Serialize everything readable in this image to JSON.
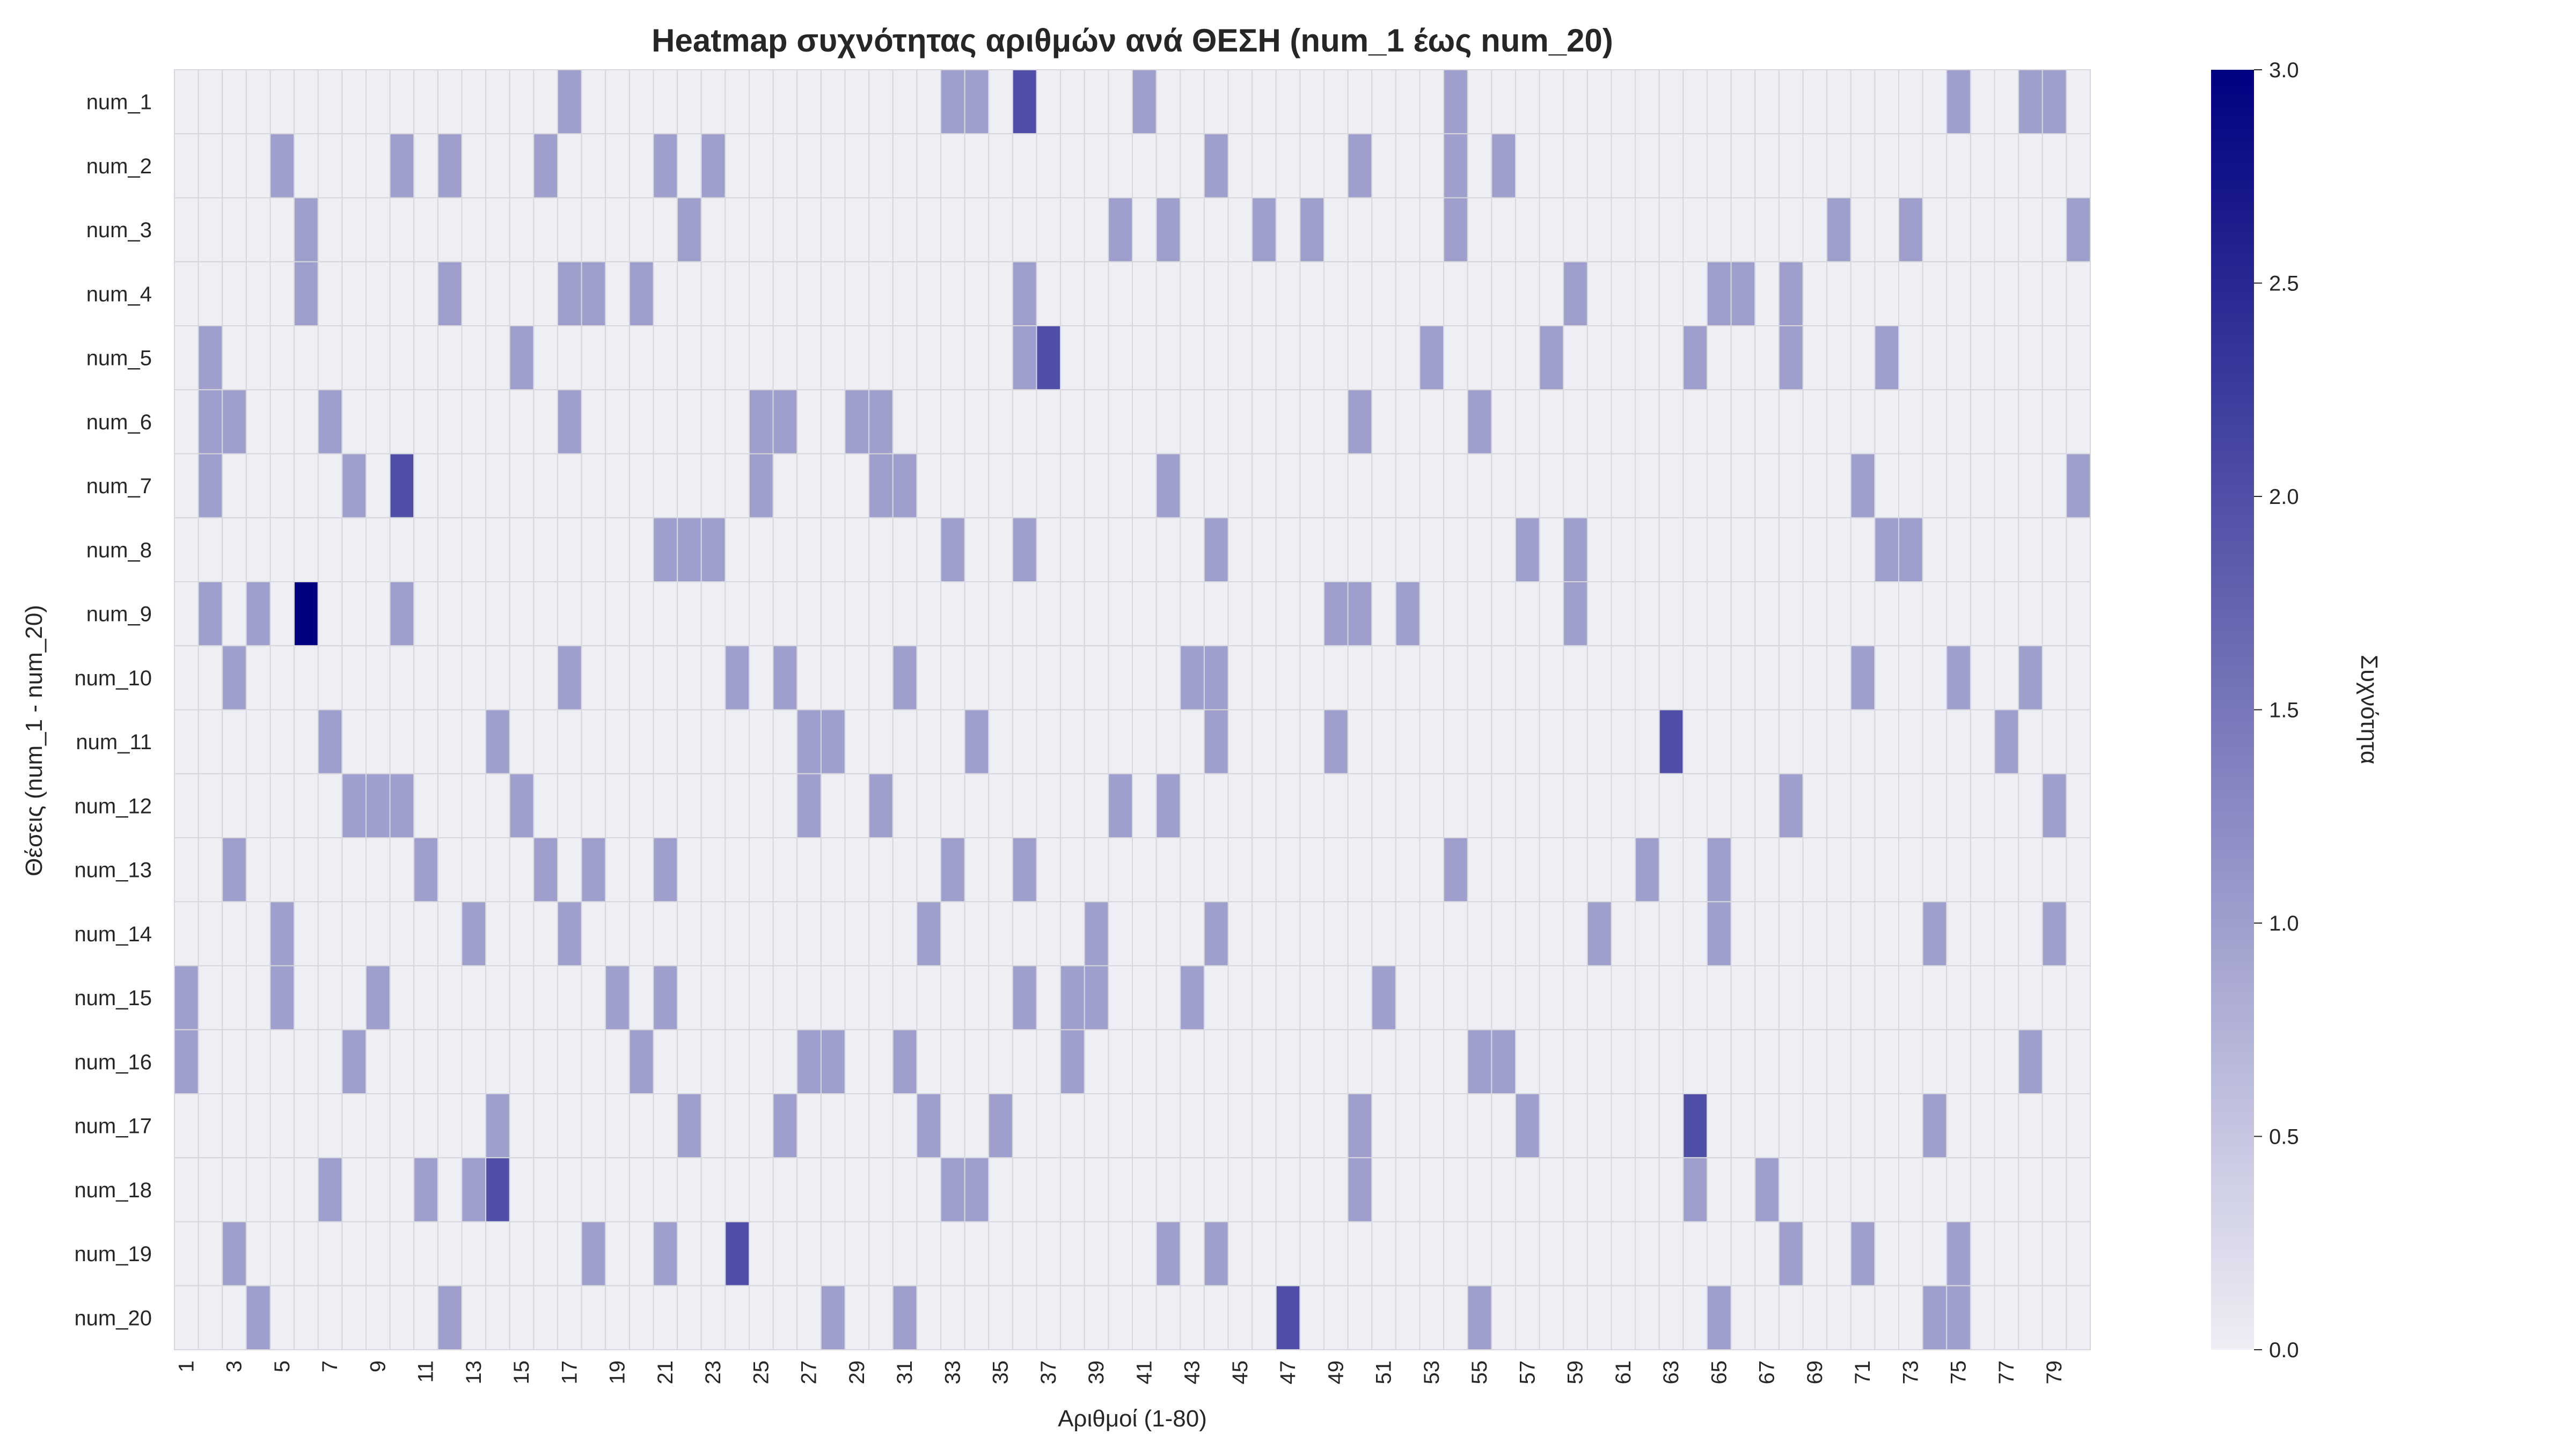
{
  "chart_data": {
    "type": "heatmap",
    "title": "Heatmap συχνότητας αριθμών ανά ΘΕΣΗ (num_1 έως num_20)",
    "xlabel": "Αριθμοί (1-80)",
    "ylabel": "Θέσεις (num_1 - num_20)",
    "colorbar_label": "Συχνότητα",
    "colorbar_range": [
      0,
      3
    ],
    "colorbar_ticks": [
      "0.0",
      "0.5",
      "1.0",
      "1.5",
      "2.0",
      "2.5",
      "3.0"
    ],
    "colorscale": [
      "#eeeef5",
      "#000080"
    ],
    "x_values": [
      1,
      2,
      3,
      4,
      5,
      6,
      7,
      8,
      9,
      10,
      11,
      12,
      13,
      14,
      15,
      16,
      17,
      18,
      19,
      20,
      21,
      22,
      23,
      24,
      25,
      26,
      27,
      28,
      29,
      30,
      31,
      32,
      33,
      34,
      35,
      36,
      37,
      38,
      39,
      40,
      41,
      42,
      43,
      44,
      45,
      46,
      47,
      48,
      49,
      50,
      51,
      52,
      53,
      54,
      55,
      56,
      57,
      58,
      59,
      60,
      61,
      62,
      63,
      64,
      65,
      66,
      67,
      68,
      69,
      70,
      71,
      72,
      73,
      74,
      75,
      76,
      77,
      78,
      79,
      80
    ],
    "x_tick_labels": [
      "1",
      "3",
      "5",
      "7",
      "9",
      "11",
      "13",
      "15",
      "17",
      "19",
      "21",
      "23",
      "25",
      "27",
      "29",
      "31",
      "33",
      "35",
      "37",
      "39",
      "41",
      "43",
      "45",
      "47",
      "49",
      "51",
      "53",
      "55",
      "57",
      "59",
      "61",
      "63",
      "65",
      "67",
      "69",
      "71",
      "73",
      "75",
      "77",
      "79"
    ],
    "rows": [
      "num_1",
      "num_2",
      "num_3",
      "num_4",
      "num_5",
      "num_6",
      "num_7",
      "num_8",
      "num_9",
      "num_10",
      "num_11",
      "num_12",
      "num_13",
      "num_14",
      "num_15",
      "num_16",
      "num_17",
      "num_18",
      "num_19",
      "num_20"
    ],
    "nonzero_cells": [
      {
        "row": "num_1",
        "counts": {
          "17": 1,
          "33": 1,
          "34": 1,
          "36": 2,
          "41": 1,
          "54": 1,
          "75": 1,
          "78": 1,
          "79": 1
        }
      },
      {
        "row": "num_2",
        "counts": {
          "5": 1,
          "10": 1,
          "12": 1,
          "16": 1,
          "21": 1,
          "23": 1,
          "44": 1,
          "50": 1,
          "54": 1,
          "56": 1
        }
      },
      {
        "row": "num_3",
        "counts": {
          "6": 1,
          "22": 1,
          "40": 1,
          "42": 1,
          "46": 1,
          "48": 1,
          "54": 1,
          "70": 1,
          "73": 1,
          "80": 1
        }
      },
      {
        "row": "num_4",
        "counts": {
          "6": 1,
          "12": 1,
          "17": 1,
          "18": 1,
          "20": 1,
          "36": 1,
          "59": 1,
          "65": 1,
          "66": 1,
          "68": 1
        }
      },
      {
        "row": "num_5",
        "counts": {
          "2": 1,
          "15": 1,
          "36": 1,
          "37": 2,
          "53": 1,
          "58": 1,
          "64": 1,
          "68": 1,
          "72": 1
        }
      },
      {
        "row": "num_6",
        "counts": {
          "2": 1,
          "3": 1,
          "7": 1,
          "17": 1,
          "25": 1,
          "26": 1,
          "29": 1,
          "30": 1,
          "50": 1,
          "55": 1
        }
      },
      {
        "row": "num_7",
        "counts": {
          "2": 1,
          "8": 1,
          "10": 2,
          "25": 1,
          "30": 1,
          "31": 1,
          "42": 1,
          "71": 1,
          "80": 1
        }
      },
      {
        "row": "num_8",
        "counts": {
          "21": 1,
          "22": 1,
          "23": 1,
          "33": 1,
          "36": 1,
          "44": 1,
          "57": 1,
          "59": 1,
          "72": 1,
          "73": 1
        }
      },
      {
        "row": "num_9",
        "counts": {
          "2": 1,
          "4": 1,
          "6": 3,
          "10": 1,
          "49": 1,
          "50": 1,
          "52": 1,
          "59": 1
        }
      },
      {
        "row": "num_10",
        "counts": {
          "3": 1,
          "17": 1,
          "24": 1,
          "26": 1,
          "31": 1,
          "43": 1,
          "44": 1,
          "71": 1,
          "75": 1,
          "78": 1
        }
      },
      {
        "row": "num_11",
        "counts": {
          "7": 1,
          "14": 1,
          "27": 1,
          "28": 1,
          "34": 1,
          "44": 1,
          "49": 1,
          "63": 2,
          "77": 1
        }
      },
      {
        "row": "num_12",
        "counts": {
          "8": 1,
          "9": 1,
          "10": 1,
          "15": 1,
          "27": 1,
          "30": 1,
          "40": 1,
          "42": 1,
          "68": 1,
          "79": 1
        }
      },
      {
        "row": "num_13",
        "counts": {
          "3": 1,
          "11": 1,
          "16": 1,
          "18": 1,
          "21": 1,
          "33": 1,
          "36": 1,
          "54": 1,
          "62": 1,
          "65": 1
        }
      },
      {
        "row": "num_14",
        "counts": {
          "5": 1,
          "13": 1,
          "17": 1,
          "32": 1,
          "39": 1,
          "44": 1,
          "60": 1,
          "65": 1,
          "74": 1,
          "79": 1
        }
      },
      {
        "row": "num_15",
        "counts": {
          "1": 1,
          "5": 1,
          "9": 1,
          "19": 1,
          "21": 1,
          "36": 1,
          "38": 1,
          "39": 1,
          "43": 1,
          "51": 1
        }
      },
      {
        "row": "num_16",
        "counts": {
          "1": 1,
          "8": 1,
          "20": 1,
          "27": 1,
          "28": 1,
          "31": 1,
          "38": 1,
          "55": 1,
          "56": 1,
          "78": 1
        }
      },
      {
        "row": "num_17",
        "counts": {
          "14": 1,
          "22": 1,
          "26": 1,
          "32": 1,
          "35": 1,
          "50": 1,
          "57": 1,
          "64": 2,
          "74": 1
        }
      },
      {
        "row": "num_18",
        "counts": {
          "7": 1,
          "11": 1,
          "13": 1,
          "14": 2,
          "33": 1,
          "34": 1,
          "50": 1,
          "64": 1,
          "67": 1
        }
      },
      {
        "row": "num_19",
        "counts": {
          "3": 1,
          "18": 1,
          "21": 1,
          "24": 2,
          "42": 1,
          "44": 1,
          "68": 1,
          "71": 1,
          "75": 1
        }
      },
      {
        "row": "num_20",
        "counts": {
          "4": 1,
          "12": 1,
          "28": 1,
          "31": 1,
          "47": 2,
          "55": 1,
          "65": 1,
          "74": 1,
          "75": 1
        }
      }
    ]
  }
}
